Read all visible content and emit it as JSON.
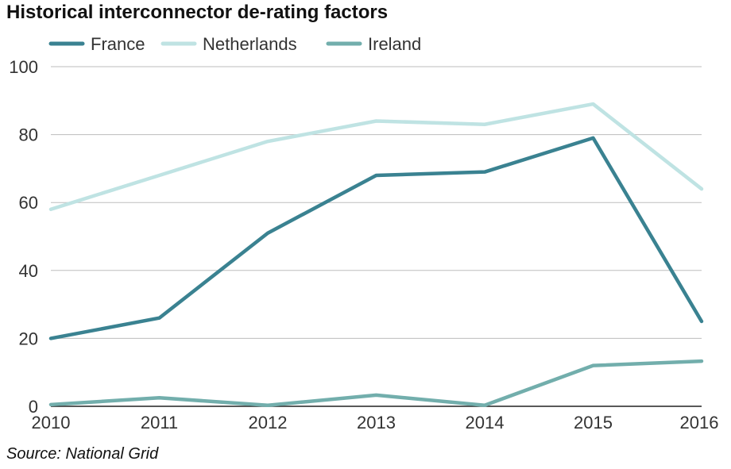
{
  "title": "Historical interconnector de-rating factors",
  "source": "Source: National Grid",
  "chart_data": {
    "type": "line",
    "x": [
      "2010",
      "2011",
      "2012",
      "2013",
      "2014",
      "2015",
      "2016"
    ],
    "ylim": [
      0,
      100
    ],
    "yticks": [
      "0",
      "20",
      "40",
      "60",
      "80",
      "100"
    ],
    "grid": true,
    "legend_position": "top",
    "series": [
      {
        "name": "France",
        "color": "#3a8291",
        "values": [
          20,
          26,
          51,
          68,
          69,
          79,
          25
        ]
      },
      {
        "name": "Netherlands",
        "color": "#bfe3e3",
        "values": [
          58,
          68,
          78,
          84,
          83,
          89,
          64
        ]
      },
      {
        "name": "Ireland",
        "color": "#72aeac",
        "values": [
          0.5,
          2.5,
          0.3,
          3.3,
          0.3,
          12,
          13.3
        ]
      }
    ]
  }
}
